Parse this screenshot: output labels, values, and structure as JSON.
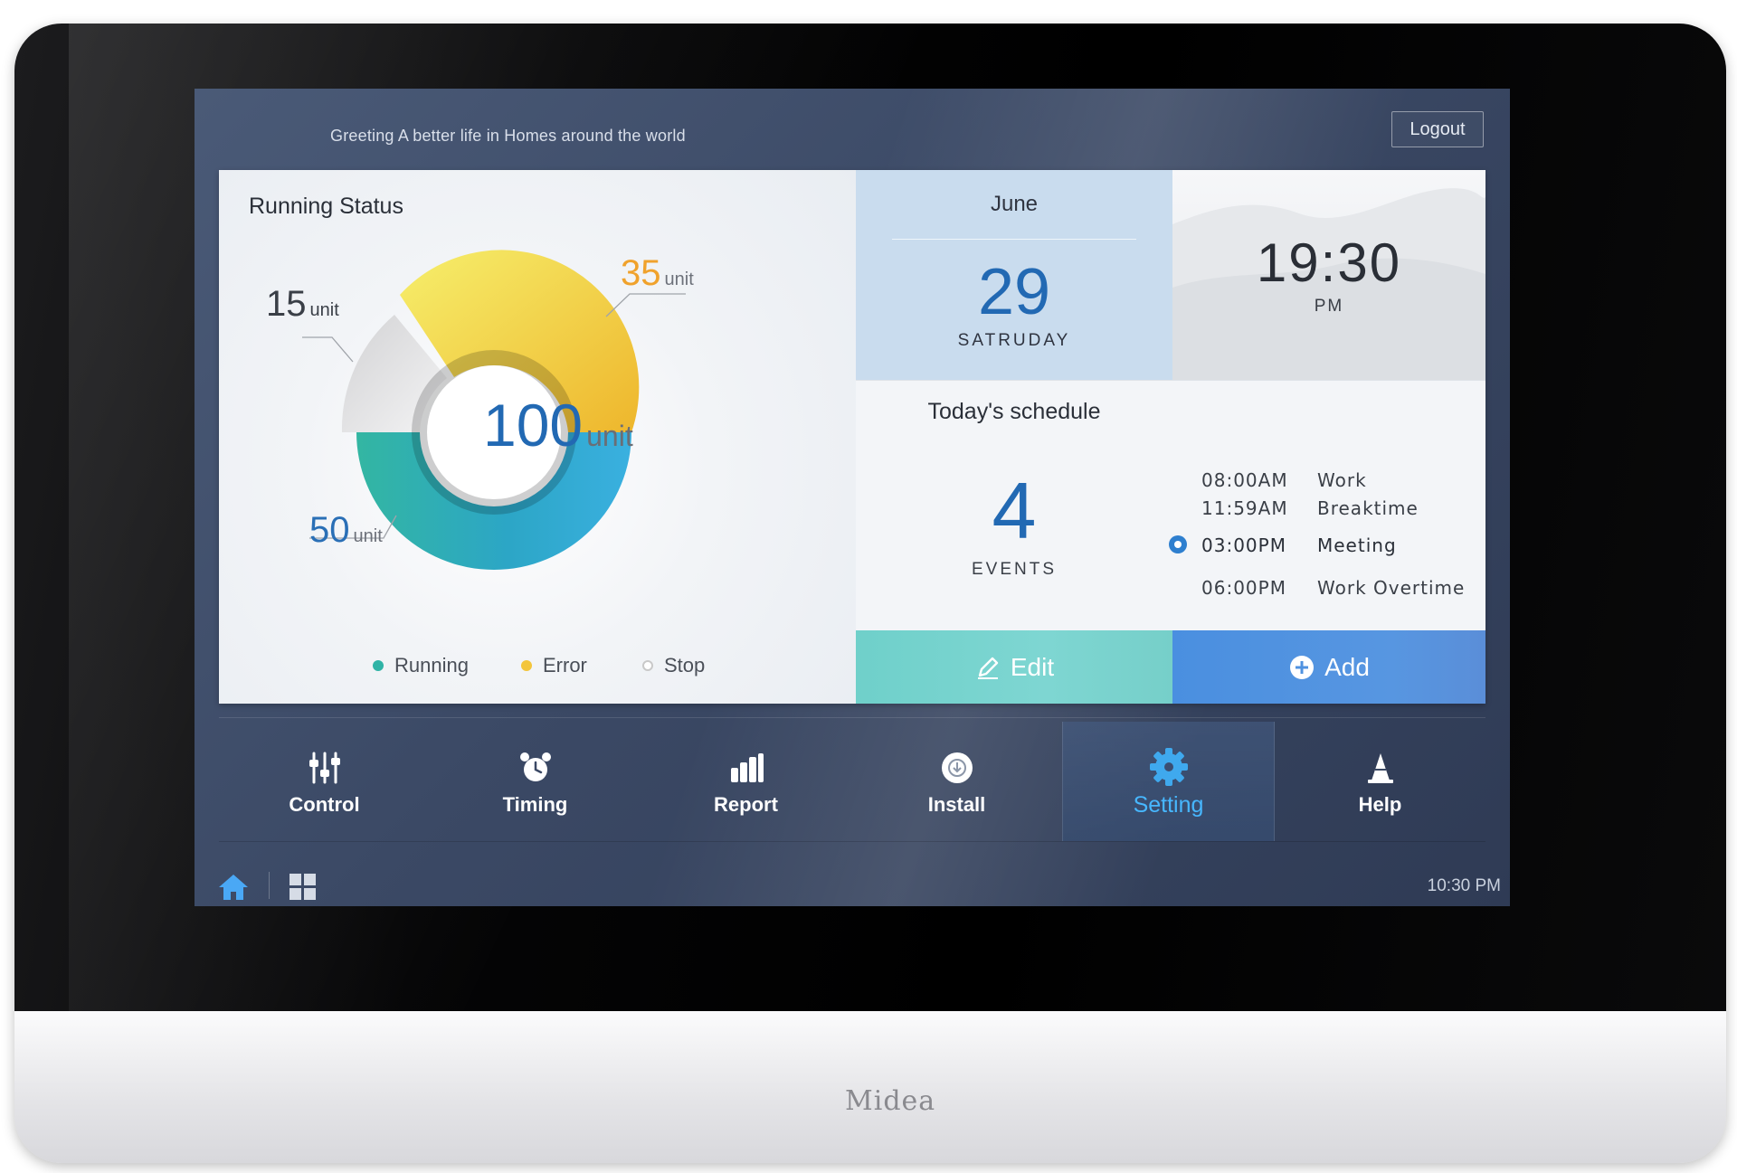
{
  "device": {
    "brand": "Midea"
  },
  "header": {
    "greeting": "Greeting A better life in Homes around the world",
    "logout_label": "Logout"
  },
  "running_status": {
    "title": "Running Status",
    "total_value": "100",
    "total_unit": "unit",
    "segments": [
      {
        "label": "15",
        "unit": "unit",
        "status": "Stop",
        "color": "#d8d8d8"
      },
      {
        "label": "35",
        "unit": "unit",
        "status": "Error",
        "color": "#f2c63a"
      },
      {
        "label": "50",
        "unit": "unit",
        "status": "Running",
        "color": "#36b9ad"
      }
    ],
    "legend": [
      {
        "label": "Running",
        "color": "#2fb3a6"
      },
      {
        "label": "Error",
        "color": "#f3c53c"
      },
      {
        "label": "Stop",
        "color": "#c9c9c9"
      }
    ]
  },
  "date": {
    "month": "June",
    "day": "29",
    "weekday": "SATRUDAY"
  },
  "clock": {
    "time": "19:30",
    "ampm": "PM"
  },
  "schedule": {
    "title": "Today's schedule",
    "count": "4",
    "count_label": "EVENTS",
    "events": [
      {
        "time": "08:00AM",
        "name": "Work"
      },
      {
        "time": "11:59AM",
        "name": "Breaktime"
      },
      {
        "time": "03:00PM",
        "name": "Meeting"
      },
      {
        "time": "06:00PM",
        "name": "Work Overtime"
      }
    ],
    "edit_label": "Edit",
    "add_label": "Add"
  },
  "nav": {
    "items": [
      {
        "label": "Control",
        "icon": "sliders-icon"
      },
      {
        "label": "Timing",
        "icon": "alarm-clock-icon"
      },
      {
        "label": "Report",
        "icon": "bar-chart-icon"
      },
      {
        "label": "Install",
        "icon": "install-icon"
      },
      {
        "label": "Setting",
        "icon": "gear-icon"
      },
      {
        "label": "Help",
        "icon": "help-cone-icon"
      }
    ],
    "active": "Setting"
  },
  "statusbar": {
    "time": "10:30 PM",
    "home_icon": "home-icon",
    "apps_icon": "apps-grid-icon"
  },
  "colors": {
    "accent_blue": "#2269b3",
    "active_nav": "#47b7ff",
    "edit_button": "#76d2cc",
    "add_button": "#5294e0"
  }
}
